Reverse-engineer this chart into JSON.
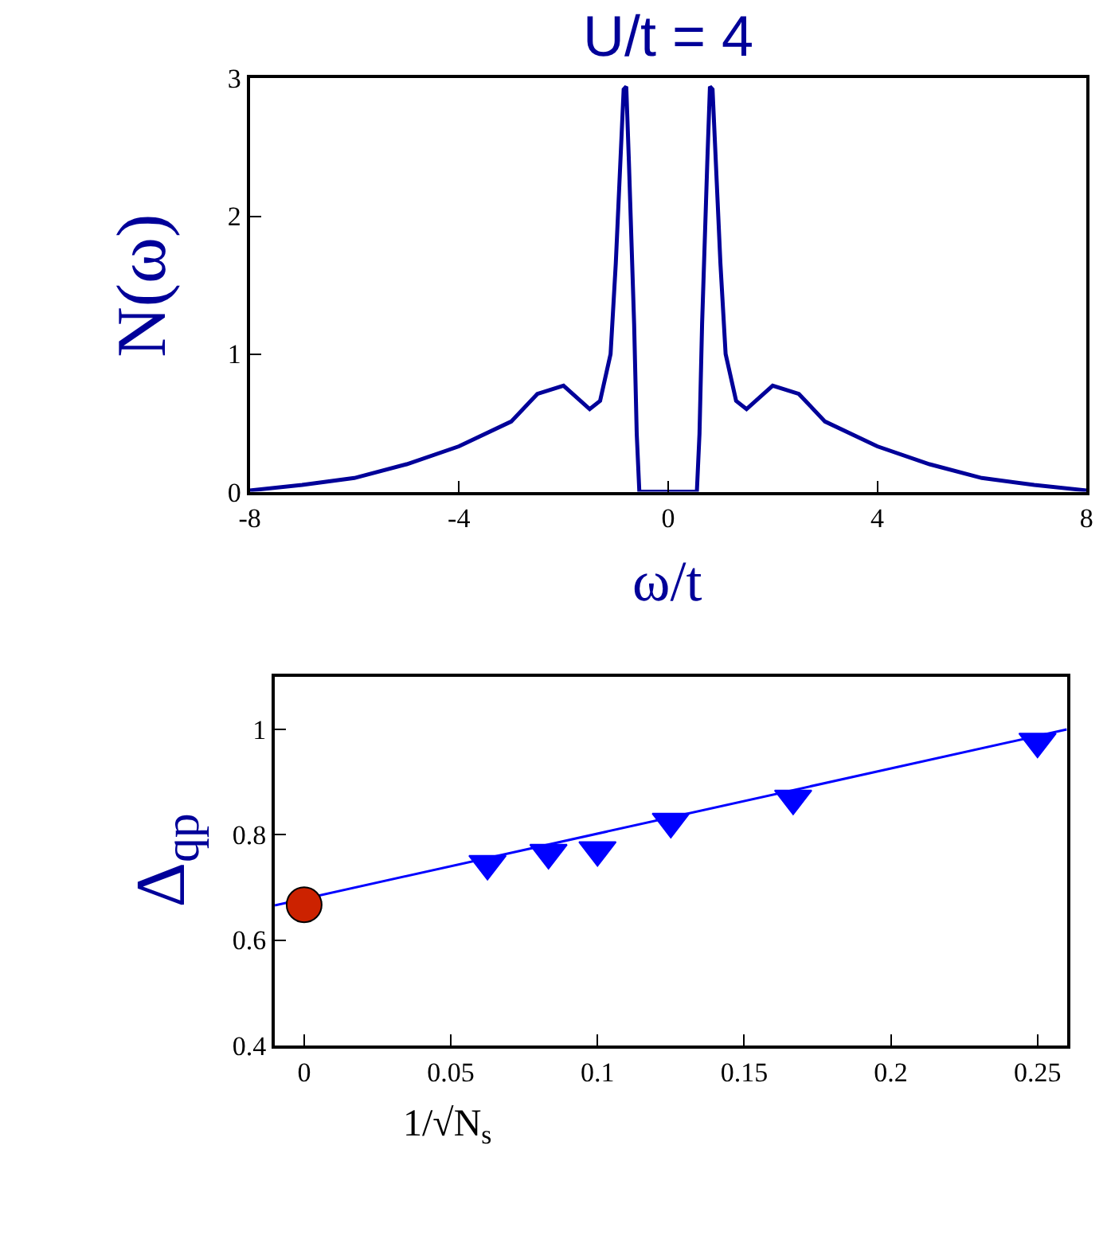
{
  "chart_data": [
    {
      "type": "line",
      "title": "U/t = 4",
      "xlabel": "ω/t",
      "ylabel": "N(ω)",
      "xlim": [
        -8,
        8
      ],
      "ylim": [
        0,
        3
      ],
      "xticks": [
        -8,
        -4,
        0,
        4,
        8
      ],
      "yticks": [
        0,
        1,
        2,
        3
      ],
      "marker": "none",
      "line_style": "solid",
      "x": [
        -8,
        -7,
        -6,
        -5,
        -4,
        -3,
        -2.5,
        -2,
        -1.5,
        -1.3,
        -1.1,
        -1.0,
        -0.85,
        -0.8,
        -0.75,
        -0.65,
        -0.6,
        -0.55,
        0,
        0.55,
        0.6,
        0.65,
        0.75,
        0.8,
        0.85,
        1.0,
        1.1,
        1.3,
        1.5,
        2,
        2.5,
        3,
        4,
        5,
        6,
        7,
        8
      ],
      "series": [
        {
          "color": "#000099",
          "values": [
            0.01,
            0.05,
            0.1,
            0.2,
            0.33,
            0.51,
            0.71,
            0.77,
            0.6,
            0.66,
            1.0,
            1.66,
            2.92,
            2.94,
            2.4,
            1.22,
            0.42,
            0,
            0,
            0,
            0.42,
            1.22,
            2.4,
            2.94,
            2.92,
            1.66,
            1.0,
            0.66,
            0.6,
            0.77,
            0.71,
            0.51,
            0.33,
            0.2,
            0.1,
            0.05,
            0.01
          ]
        }
      ]
    },
    {
      "type": "scatter",
      "xlabel": "1/√N$_{s}$",
      "ylabel": "Δ$_{qp}$",
      "xlim": [
        -0.01,
        0.26
      ],
      "ylim": [
        0.4,
        1.1
      ],
      "xticks": [
        0,
        0.05,
        0.1,
        0.15,
        0.2,
        0.25
      ],
      "yticks": [
        0.4,
        0.6,
        0.8,
        1
      ],
      "series": [
        {
          "type": "line",
          "color": "#0000ff",
          "marker": "none",
          "line_style": "solid",
          "x": [
            -0.01,
            0.26
          ],
          "values": [
            0.666,
            1.0
          ]
        },
        {
          "type": "scatter",
          "color": "#0000ff",
          "marker": "triangle",
          "x": [
            0.0625,
            0.0833,
            0.1,
            0.125,
            0.1667,
            0.25
          ],
          "values": [
            0.745,
            0.766,
            0.771,
            0.825,
            0.869,
            0.977
          ]
        },
        {
          "type": "scatter",
          "color": "#cc2200",
          "marker": "circle",
          "x": [
            0
          ],
          "values": [
            0.667
          ]
        }
      ]
    }
  ]
}
